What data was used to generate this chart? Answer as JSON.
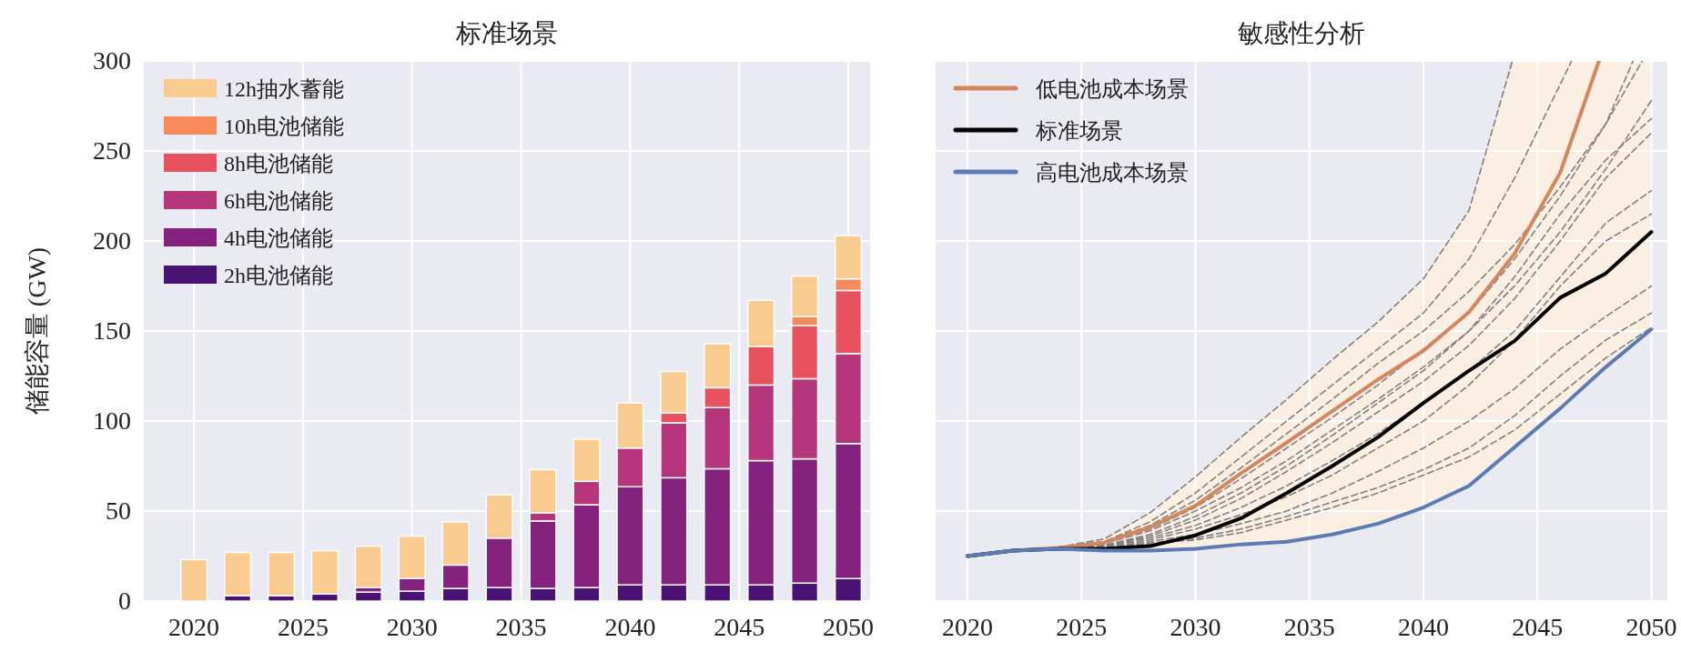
{
  "chart_data": [
    {
      "type": "bar",
      "title": "标准场景",
      "ylabel": "储能容量 (GW)",
      "stacked": true,
      "grid": true,
      "legend": "top left",
      "x": [
        2020,
        2022,
        2024,
        2026,
        2028,
        2030,
        2032,
        2034,
        2036,
        2038,
        2040,
        2042,
        2044,
        2046,
        2048,
        2050
      ],
      "xlim": [
        2017.7,
        2051
      ],
      "ylim": [
        0,
        300
      ],
      "xticks": [
        2020,
        2025,
        2030,
        2035,
        2040,
        2045,
        2050
      ],
      "yticks": [
        0,
        50,
        100,
        150,
        200,
        250,
        300
      ],
      "series": [
        {
          "name": "2h电池储能",
          "color": "#4a1272",
          "values": [
            null,
            3,
            3,
            4,
            5,
            5.5,
            7,
            7.5,
            7,
            7.5,
            9,
            9,
            9,
            9,
            10,
            12.5
          ]
        },
        {
          "name": "4h电池储能",
          "color": "#84207e",
          "values": [
            0,
            0,
            0,
            0,
            2.5,
            7,
            13,
            27.5,
            37.5,
            46,
            54.5,
            59.5,
            64.5,
            69,
            69,
            75
          ]
        },
        {
          "name": "6h电池储能",
          "color": "#b5367a",
          "values": [
            0,
            0,
            0,
            0,
            0,
            0,
            0,
            0,
            4.5,
            13,
            21.5,
            30.5,
            34,
            42,
            44.5,
            50
          ]
        },
        {
          "name": "8h电池储能",
          "color": "#e8525f",
          "values": [
            0,
            0,
            0,
            0,
            0,
            0,
            0,
            0,
            0,
            0,
            0,
            5.5,
            11,
            21.5,
            29.5,
            35
          ]
        },
        {
          "name": "10h电池储能",
          "color": "#f68a5c",
          "values": [
            0,
            0,
            0,
            0,
            0,
            0,
            0,
            0,
            0,
            0,
            0,
            0,
            0,
            0,
            5,
            6.5
          ]
        },
        {
          "name": "12h抽水蓄能",
          "color": "#f9cb8e",
          "values": [
            23,
            24,
            24,
            24,
            23,
            23.5,
            24,
            24,
            24,
            23.5,
            25,
            23,
            24.5,
            25.5,
            22.5,
            24
          ]
        }
      ]
    },
    {
      "type": "line",
      "title": "敏感性分析",
      "grid": true,
      "legend": "top left",
      "tick_labels": "x",
      "x": [
        2020,
        2022,
        2024,
        2026,
        2028,
        2030,
        2032,
        2034,
        2036,
        2038,
        2040,
        2042,
        2044,
        2046,
        2048,
        2050
      ],
      "xlim": [
        2018.6,
        2050.7
      ],
      "ylim": [
        0,
        300
      ],
      "xticks": [
        2020,
        2025,
        2030,
        2035,
        2040,
        2045,
        2050
      ],
      "yticks": [
        0,
        50,
        100,
        150,
        200,
        250,
        300
      ],
      "series": [
        {
          "color": "#808080",
          "line_style": "dashed",
          "x": [
            2020,
            2022,
            2024,
            2026,
            2028,
            2030,
            2032,
            2034,
            2036,
            2038,
            2040,
            2042,
            2043.9
          ],
          "values": [
            25,
            28,
            30,
            34.5,
            49,
            69,
            91,
            112,
            134,
            155,
            179,
            217,
            300
          ]
        },
        {
          "color": "#808080",
          "line_style": "dashed",
          "x": [
            2020,
            2022,
            2024,
            2026,
            2028,
            2030,
            2032,
            2034,
            2036,
            2038,
            2040,
            2042,
            2044,
            2046.5
          ],
          "values": [
            25,
            28,
            30,
            33,
            44,
            60,
            80,
            100,
            120,
            140,
            160,
            190,
            235,
            300
          ]
        },
        {
          "color": "#808080",
          "line_style": "dashed",
          "x": [
            2020,
            2022,
            2024,
            2026,
            2028,
            2030,
            2032,
            2034,
            2036,
            2038,
            2040,
            2042,
            2044,
            2046,
            2048,
            2049.2
          ],
          "values": [
            25,
            28,
            29.5,
            32,
            40,
            52,
            68,
            85,
            102,
            120,
            140,
            160,
            190,
            225,
            265,
            300
          ]
        },
        {
          "color": "#808080",
          "line_style": "dashed",
          "x": [
            2020,
            2022,
            2024,
            2026,
            2028,
            2030,
            2032,
            2034,
            2036,
            2038,
            2040,
            2042,
            2044,
            2046,
            2048,
            2049.6
          ],
          "values": [
            25,
            28,
            29.5,
            33,
            42,
            56,
            74,
            93,
            112,
            132,
            150,
            172,
            198,
            230,
            265,
            300
          ]
        },
        {
          "color": "#808080",
          "line_style": "dashed",
          "values": [
            25,
            28,
            29.5,
            32,
            39,
            50,
            63,
            78,
            95,
            112,
            130,
            150,
            175,
            205,
            240,
            278
          ]
        },
        {
          "color": "#808080",
          "line_style": "dashed",
          "values": [
            25,
            28,
            29,
            31,
            37,
            47,
            60,
            75,
            92,
            110,
            128,
            150,
            180,
            215,
            245,
            268
          ]
        },
        {
          "color": "#808080",
          "line_style": "dashed",
          "values": [
            25,
            28,
            29,
            31,
            36,
            45,
            57,
            72,
            88,
            105,
            122,
            142,
            168,
            200,
            235,
            260
          ]
        },
        {
          "color": "#808080",
          "line_style": "dashed",
          "values": [
            25,
            28,
            29,
            31,
            35,
            42,
            52,
            64,
            78,
            93,
            110,
            128,
            150,
            180,
            210,
            228
          ]
        },
        {
          "color": "#808080",
          "line_style": "dashed",
          "values": [
            25,
            28,
            29,
            30.5,
            34,
            40,
            48,
            58,
            70,
            85,
            100,
            120,
            145,
            175,
            200,
            215
          ]
        },
        {
          "color": "#808080",
          "line_style": "dashed",
          "values": [
            25,
            28,
            29,
            30,
            33,
            37,
            43,
            50,
            60,
            72,
            85,
            100,
            118,
            140,
            158,
            175
          ]
        },
        {
          "color": "#808080",
          "line_style": "dashed",
          "values": [
            25,
            28,
            29,
            30,
            32,
            35,
            40,
            47,
            55,
            63,
            73,
            85,
            103,
            125,
            145,
            160
          ]
        },
        {
          "color": "#808080",
          "line_style": "dashed",
          "values": [
            25,
            28,
            29,
            30,
            32,
            34,
            38,
            45,
            52,
            60,
            70,
            80,
            95,
            115,
            135,
            152
          ]
        },
        {
          "name": "低电池成本场景",
          "color": "#d3875f",
          "x": [
            2020,
            2022,
            2024,
            2026,
            2028,
            2030,
            2032,
            2034,
            2036,
            2038,
            2040,
            2042,
            2044,
            2046,
            2047.7
          ],
          "values": [
            25,
            28,
            29.5,
            32.5,
            41,
            53,
            71,
            88,
            105.5,
            123,
            139,
            160.5,
            193,
            238,
            300
          ]
        },
        {
          "name": "标准场景",
          "color": "#000000",
          "values": [
            25,
            28,
            29,
            29,
            30.5,
            36.5,
            46,
            60,
            75,
            91,
            110,
            128,
            144.5,
            168.5,
            182,
            205
          ],
          "lower": [
            25,
            28,
            29,
            28,
            28,
            29,
            31.5,
            33,
            37,
            43,
            52,
            64,
            85.5,
            107,
            130,
            151
          ],
          "upper": [
            25,
            28,
            30,
            34.5,
            49,
            69,
            91,
            112,
            134,
            155,
            179,
            217,
            300,
            300,
            300,
            300
          ]
        },
        {
          "name": "高电池成本场景",
          "color": "#5b7bb5",
          "values": [
            25,
            28,
            29,
            28,
            28,
            29,
            31.5,
            33,
            37,
            43,
            52,
            64,
            85.5,
            107,
            130,
            151
          ]
        }
      ]
    }
  ]
}
